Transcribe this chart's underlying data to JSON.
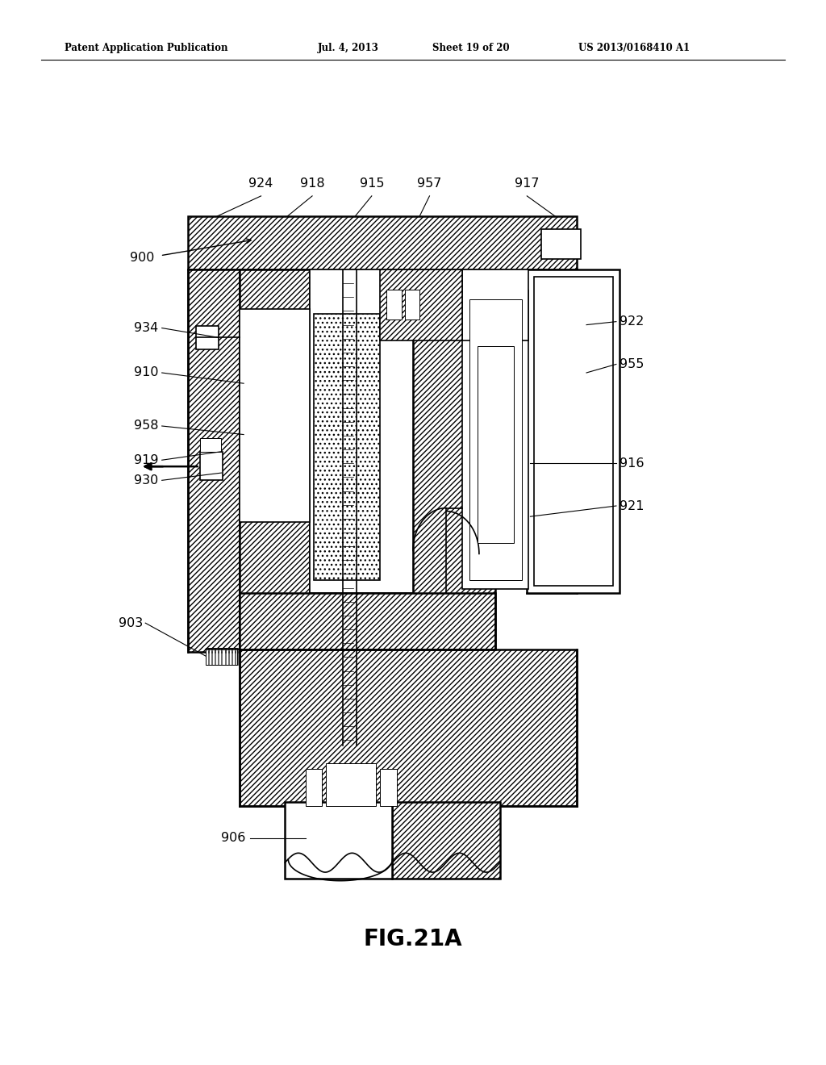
{
  "bg_color": "#ffffff",
  "header_left": "Patent Application Publication",
  "header_date": "Jul. 4, 2013",
  "header_sheet": "Sheet 19 of 20",
  "header_patent": "US 2013/0168410 A1",
  "fig_caption": "FIG.21A",
  "line_color": "#000000"
}
